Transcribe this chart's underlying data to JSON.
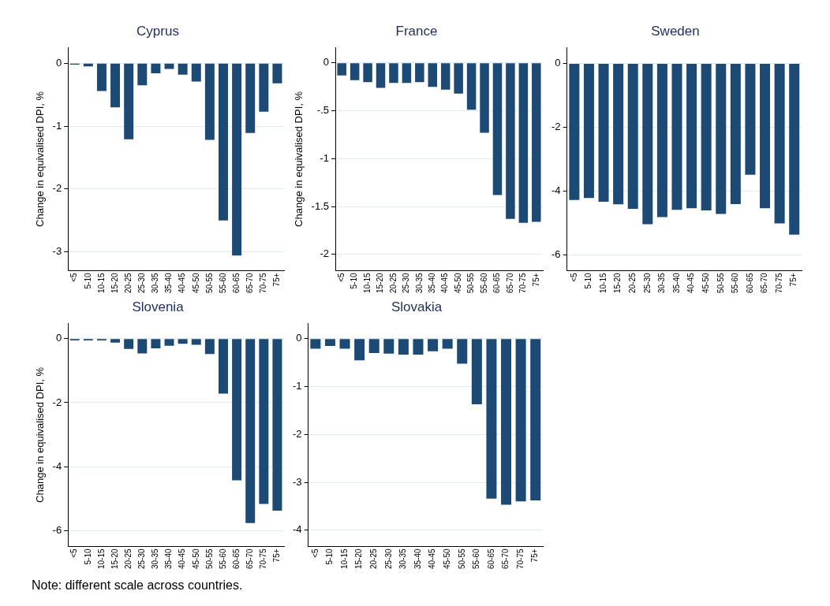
{
  "chart_data": [
    {
      "type": "bar",
      "title": "Cyprus",
      "ylabel": "Change in equivalised DPI, %",
      "categories": [
        "<5",
        "5-10",
        "10-15",
        "15-20",
        "20-25",
        "25-30",
        "30-35",
        "35-40",
        "40-45",
        "45-50",
        "50-55",
        "55-60",
        "60-65",
        "65-70",
        "70-75",
        "75+"
      ],
      "values": [
        -0.02,
        -0.05,
        -0.44,
        -0.7,
        -1.21,
        -0.35,
        -0.16,
        -0.09,
        -0.18,
        -0.29,
        -1.22,
        -2.5,
        -3.06,
        -1.11,
        -0.77,
        -0.32
      ],
      "color": "#1c4a74",
      "ylim": [
        -3.3,
        0.25
      ],
      "yticks": [
        -3,
        -2,
        -1,
        0
      ],
      "grid": "y"
    },
    {
      "type": "bar",
      "title": "France",
      "ylabel": "Change in equivalised DPI, %",
      "categories": [
        "<5",
        "5-10",
        "10-15",
        "15-20",
        "20-25",
        "25-30",
        "30-35",
        "35-40",
        "40-45",
        "45-50",
        "50-55",
        "55-60",
        "60-65",
        "65-70",
        "70-75",
        "75+"
      ],
      "values": [
        -0.13,
        -0.18,
        -0.2,
        -0.26,
        -0.21,
        -0.21,
        -0.2,
        -0.25,
        -0.28,
        -0.32,
        -0.49,
        -0.73,
        -1.38,
        -1.63,
        -1.67,
        -1.66
      ],
      "color": "#1c4a74",
      "ylim": [
        -2.17,
        0.16
      ],
      "yticks": [
        -2,
        -1.5,
        -1,
        {
          "value": -0.5,
          "label": "-.5"
        },
        0
      ],
      "grid": "y"
    },
    {
      "type": "bar",
      "title": "Sweden",
      "categories": [
        "<5",
        "5-10",
        "10-15",
        "15-20",
        "20-25",
        "25-30",
        "30-35",
        "35-40",
        "40-45",
        "45-50",
        "50-55",
        "55-60",
        "60-65",
        "65-70",
        "70-75",
        "75+"
      ],
      "values": [
        -4.28,
        -4.22,
        -4.34,
        -4.42,
        -4.56,
        -5.04,
        -4.82,
        -4.59,
        -4.54,
        -4.61,
        -4.72,
        -4.41,
        -3.49,
        -4.54,
        -5.02,
        -5.37
      ],
      "color": "#1c4a74",
      "ylim": [
        -6.5,
        0.5
      ],
      "yticks": [
        -6,
        -4,
        -2,
        0
      ],
      "grid": "y"
    },
    {
      "type": "bar",
      "title": "Slovenia",
      "ylabel": "Change in equivalised DPI, %",
      "categories": [
        "<5",
        "5-10",
        "10-15",
        "15-20",
        "20-25",
        "25-30",
        "30-35",
        "35-40",
        "40-45",
        "45-50",
        "50-55",
        "55-60",
        "60-65",
        "65-70",
        "70-75",
        "75+"
      ],
      "values": [
        -0.05,
        -0.05,
        -0.05,
        -0.12,
        -0.32,
        -0.46,
        -0.3,
        -0.22,
        -0.16,
        -0.19,
        -0.48,
        -1.72,
        -4.43,
        -5.77,
        -5.17,
        -5.38
      ],
      "color": "#1c4a74",
      "ylim": [
        -6.5,
        0.48
      ],
      "yticks": [
        -6,
        -4,
        -2,
        0
      ],
      "grid": "y"
    },
    {
      "type": "bar",
      "title": "Slovakia",
      "categories": [
        "<5",
        "5-10",
        "10-15",
        "15-20",
        "20-25",
        "25-30",
        "30-35",
        "35-40",
        "40-45",
        "45-50",
        "50-55",
        "55-60",
        "60-65",
        "65-70",
        "70-75",
        "75+"
      ],
      "values": [
        -0.21,
        -0.15,
        -0.21,
        -0.45,
        -0.3,
        -0.31,
        -0.33,
        -0.33,
        -0.26,
        -0.21,
        -0.52,
        -1.37,
        -3.34,
        -3.47,
        -3.4,
        -3.38
      ],
      "color": "#1c4a74",
      "ylim": [
        -4.34,
        0.32
      ],
      "yticks": [
        -4,
        -3,
        -2,
        -1,
        0
      ],
      "grid": "y",
      "annotations": [
        "Note: different scale across countries."
      ]
    }
  ]
}
